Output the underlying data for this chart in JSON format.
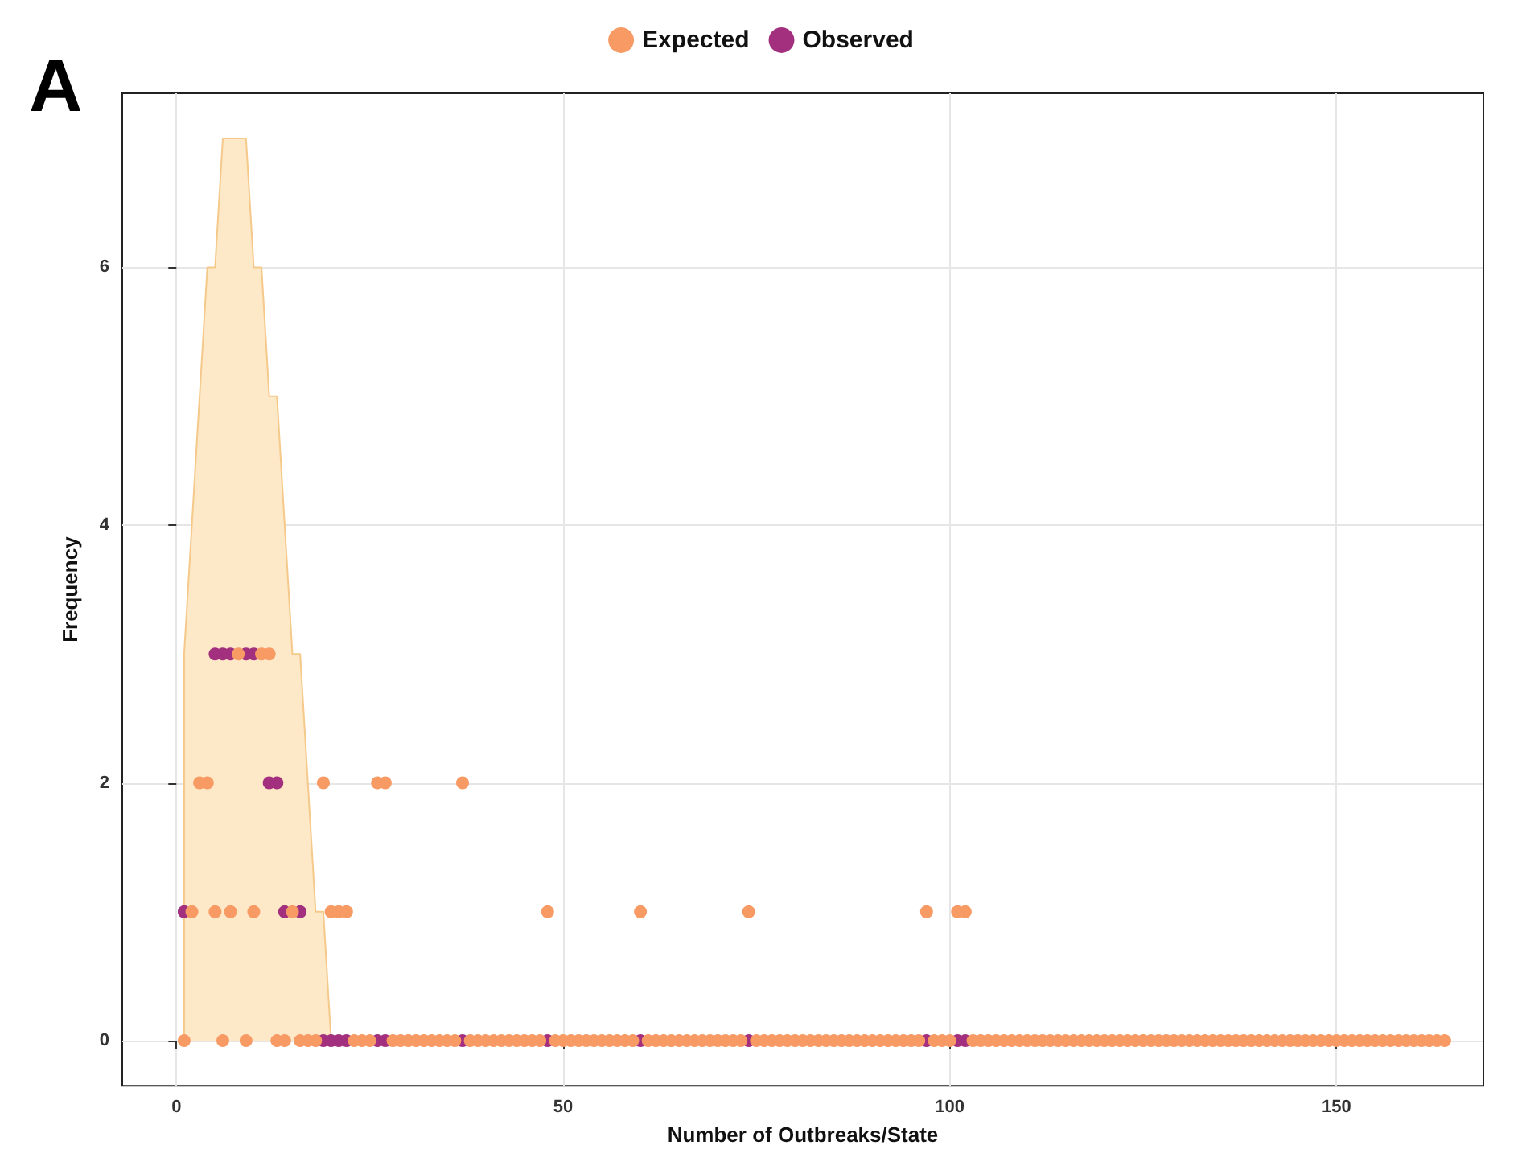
{
  "chart_data": {
    "type": "scatter",
    "annotations": [
      "A"
    ],
    "xlabel": "Number of Outbreaks/State",
    "ylabel": "Frequency",
    "xlim": [
      -7,
      169
    ],
    "xticks": [
      0,
      50,
      100,
      150
    ],
    "ylim": [
      -0.35,
      7.35
    ],
    "yticks": [
      0,
      2,
      4,
      6
    ],
    "grid": true,
    "legend": "top",
    "marker": "circle",
    "series": [
      {
        "type": "area",
        "marker": "none",
        "color": "#fde8c8",
        "x": [
          1,
          1,
          4,
          5,
          6,
          9,
          10,
          11,
          12,
          13,
          15,
          16,
          18,
          19,
          20
        ],
        "values": [
          0,
          3,
          6,
          6,
          7,
          7,
          6,
          6,
          5,
          5,
          3,
          3,
          1,
          1,
          0
        ]
      },
      {
        "name": "Expected",
        "color": "#f79a64",
        "x": [
          1,
          2,
          3,
          4,
          5,
          6,
          7,
          8,
          9,
          10,
          11,
          12,
          13,
          14,
          15,
          16,
          17,
          18,
          19,
          20,
          21,
          22,
          23,
          24,
          25,
          26,
          27,
          28,
          29,
          30,
          31,
          32,
          33,
          34,
          35,
          36,
          37,
          38,
          39,
          40,
          41,
          42,
          43,
          44,
          45,
          46,
          47,
          48,
          49,
          50,
          51,
          52,
          53,
          54,
          55,
          56,
          57,
          58,
          59,
          60,
          61,
          62,
          63,
          64,
          65,
          66,
          67,
          68,
          69,
          70,
          71,
          72,
          73,
          74,
          75,
          76,
          77,
          78,
          79,
          80,
          81,
          82,
          83,
          84,
          85,
          86,
          87,
          88,
          89,
          90,
          91,
          92,
          93,
          94,
          95,
          96,
          97,
          98,
          99,
          100,
          101,
          102,
          103,
          104,
          105,
          106,
          107,
          108,
          109,
          110,
          111,
          112,
          113,
          114,
          115,
          116,
          117,
          118,
          119,
          120,
          121,
          122,
          123,
          124,
          125,
          126,
          127,
          128,
          129,
          130,
          131,
          132,
          133,
          134,
          135,
          136,
          137,
          138,
          139,
          140,
          141,
          142,
          143,
          144,
          145,
          146,
          147,
          148,
          149,
          150,
          151,
          152,
          153,
          154,
          155,
          156,
          157,
          158,
          159,
          160,
          161,
          162,
          163,
          164
        ],
        "values": [
          0,
          1,
          2,
          2,
          1,
          0,
          1,
          3,
          0,
          1,
          3,
          3,
          0,
          0,
          1,
          0,
          0,
          0,
          2,
          1,
          1,
          1,
          0,
          0,
          0,
          2,
          2,
          0,
          0,
          0,
          0,
          0,
          0,
          0,
          0,
          0,
          2,
          0,
          0,
          0,
          0,
          0,
          0,
          0,
          0,
          0,
          0,
          1,
          0,
          0,
          0,
          0,
          0,
          0,
          0,
          0,
          0,
          0,
          0,
          1,
          0,
          0,
          0,
          0,
          0,
          0,
          0,
          0,
          0,
          0,
          0,
          0,
          0,
          1,
          0,
          0,
          0,
          0,
          0,
          0,
          0,
          0,
          0,
          0,
          0,
          0,
          0,
          0,
          0,
          0,
          0,
          0,
          0,
          0,
          0,
          0,
          1,
          0,
          0,
          0,
          1,
          1,
          0,
          0,
          0,
          0,
          0,
          0,
          0,
          0,
          0,
          0,
          0,
          0,
          0,
          0,
          0,
          0,
          0,
          0,
          0,
          0,
          0,
          0,
          0,
          0,
          0,
          0,
          0,
          0,
          0,
          0,
          0,
          0,
          0,
          0,
          0,
          0,
          0,
          0,
          0,
          0,
          0,
          0,
          0,
          0,
          0,
          0,
          0,
          0,
          0,
          0,
          0,
          0,
          0,
          0,
          0,
          0,
          0,
          0,
          0,
          0,
          0,
          0
        ]
      },
      {
        "name": "Observed",
        "color": "#a3307e",
        "x": [
          1,
          5,
          6,
          7,
          9,
          10,
          12,
          13,
          14,
          16,
          19,
          20,
          21,
          22,
          26,
          27,
          37,
          48,
          60,
          74,
          97,
          101,
          102
        ],
        "values": [
          1,
          3,
          3,
          3,
          3,
          3,
          2,
          2,
          1,
          1,
          0,
          0,
          0,
          0,
          0,
          0,
          0,
          0,
          0,
          0,
          0,
          0,
          0
        ]
      }
    ]
  }
}
